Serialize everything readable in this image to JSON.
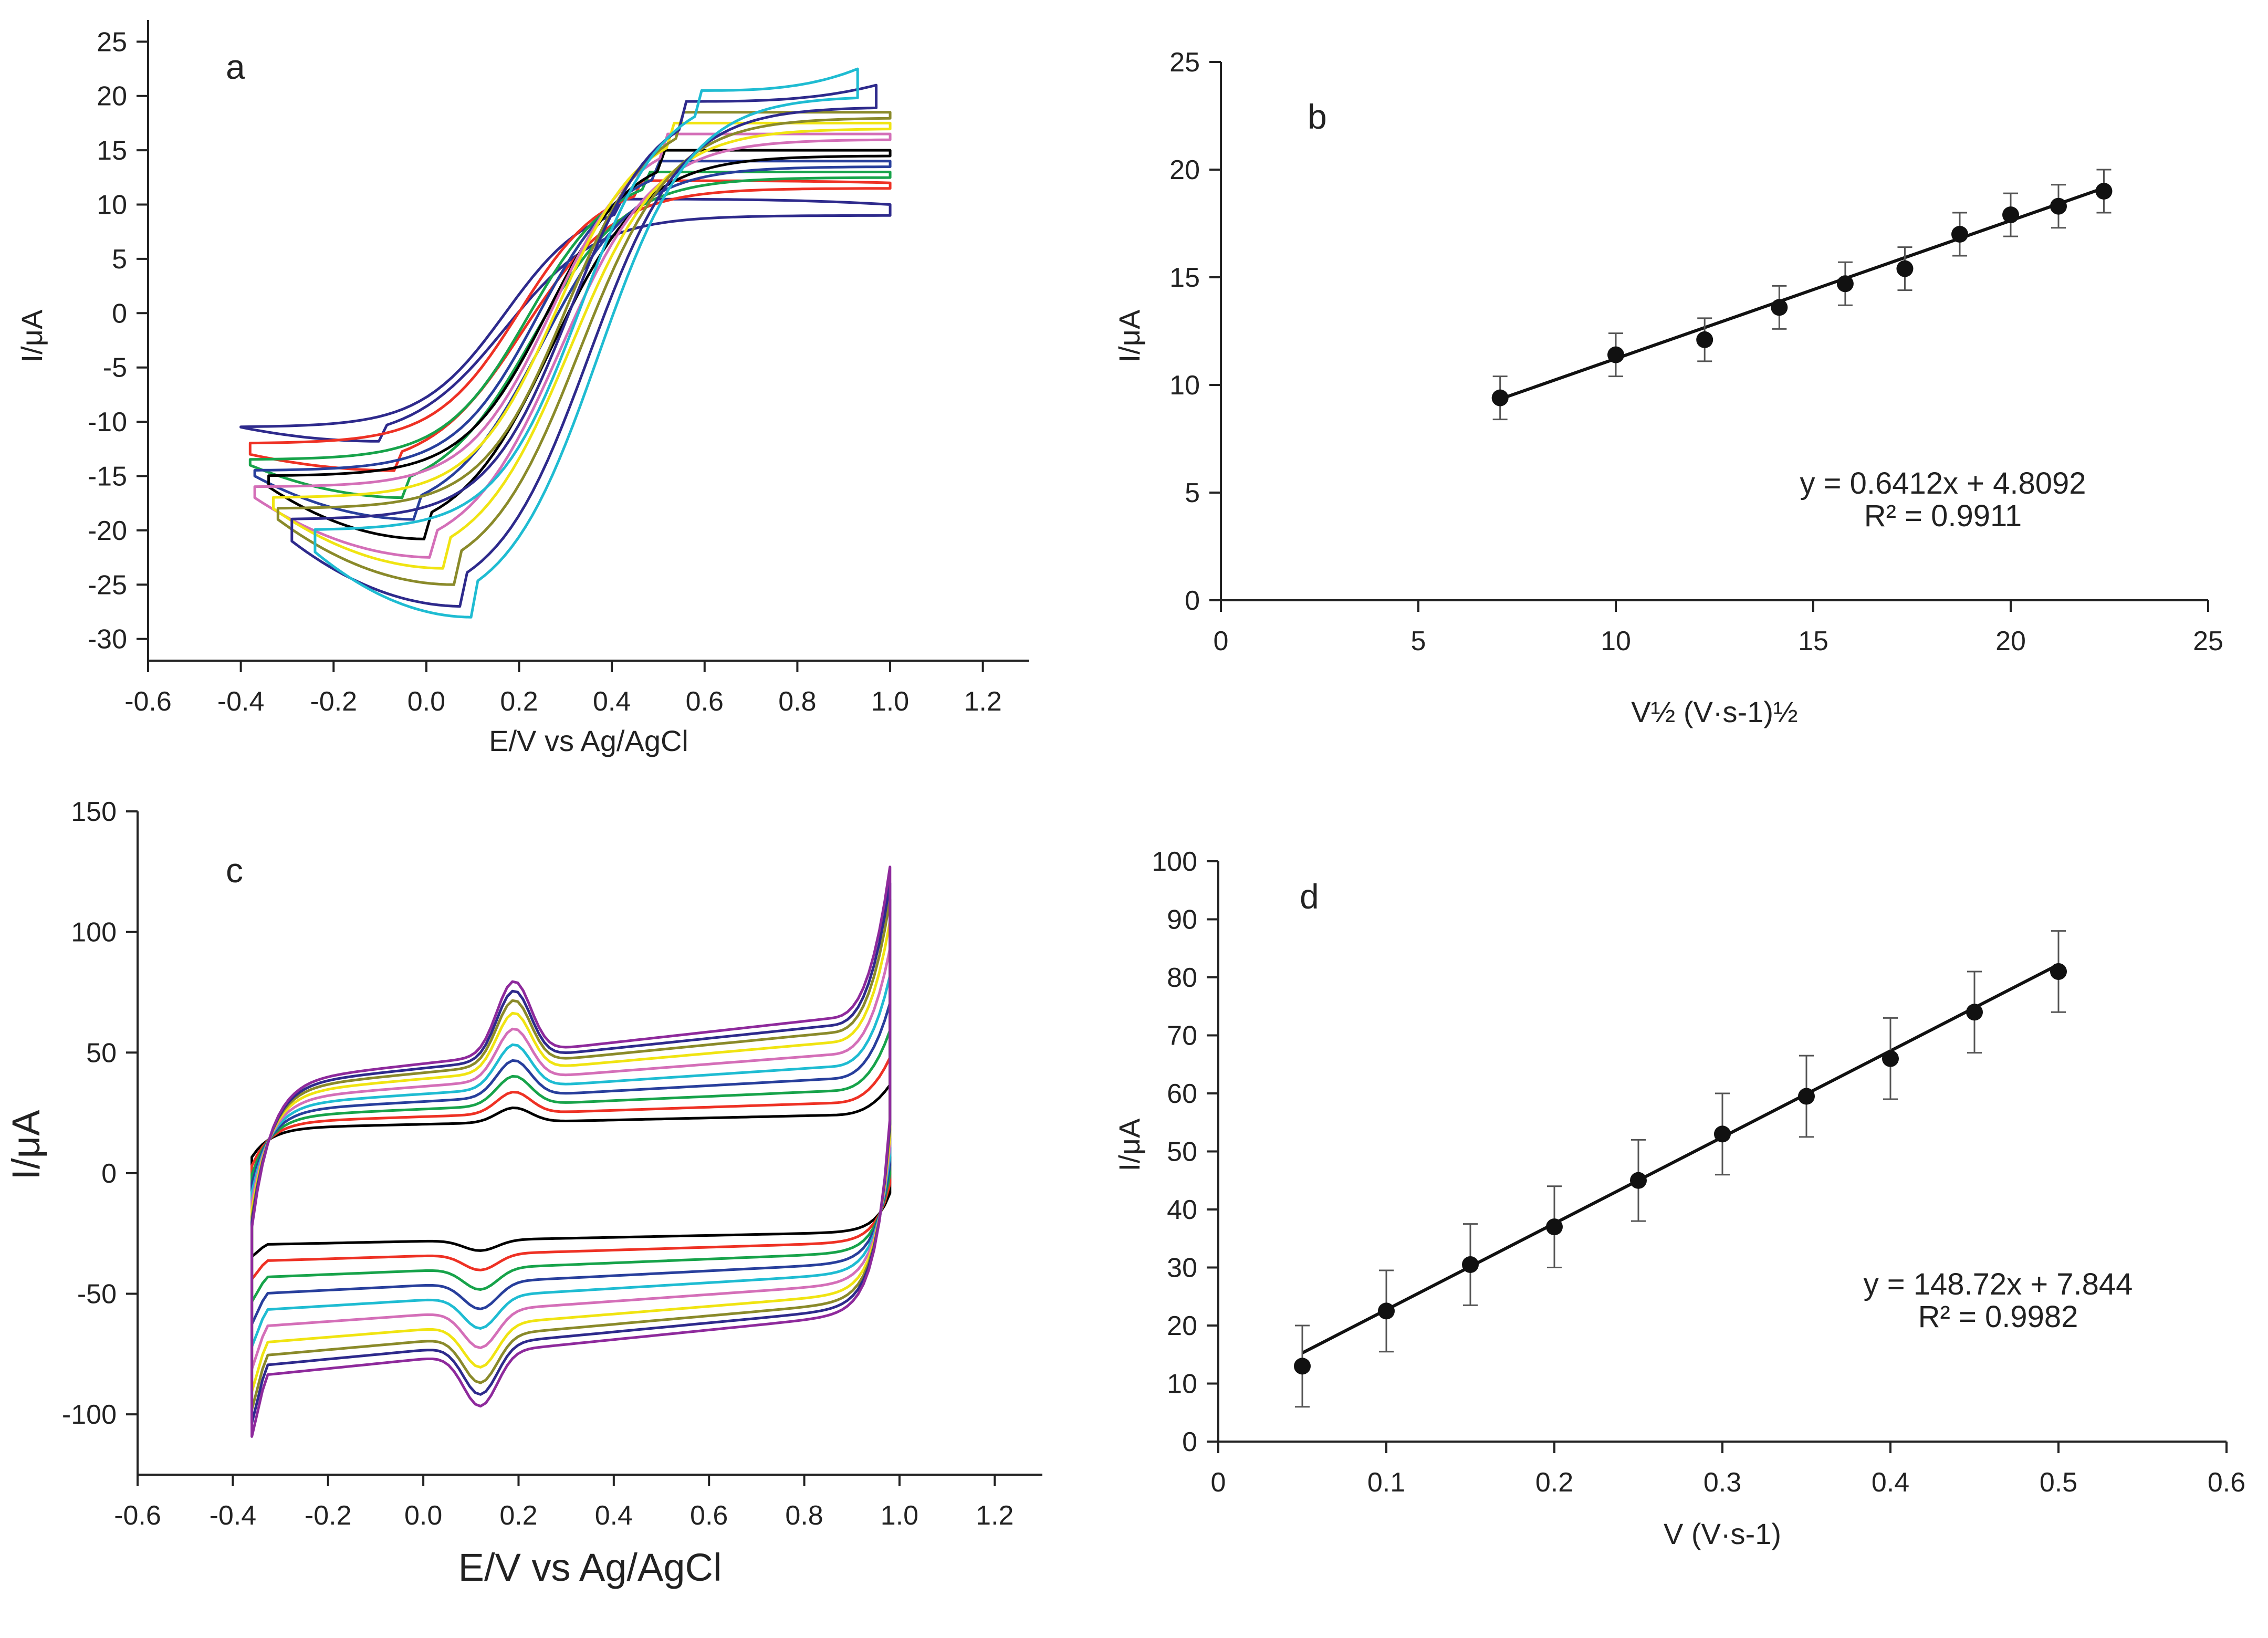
{
  "chart_data": [
    {
      "id": "a",
      "panel_label": "a",
      "type": "line",
      "xlabel": "E/V vs Ag/AgCl",
      "ylabel": "I/μA",
      "xlim": [
        -0.6,
        1.3
      ],
      "ylim": [
        -32,
        27
      ],
      "xticks": [
        "-0.6",
        "-0.4",
        "-0.2",
        "0.0",
        "0.2",
        "0.4",
        "0.6",
        "0.8",
        "1.0",
        "1.2"
      ],
      "yticks": [
        "-30",
        "-25",
        "-20",
        "-15",
        "-10",
        "-5",
        "0",
        "5",
        "10",
        "15",
        "20",
        "25"
      ],
      "grid": false,
      "series": [
        {
          "color": "#2e2a8c",
          "e_start": -0.4,
          "e_end": 1.0,
          "e_pa": 0.42,
          "e_pc": -0.1,
          "i_pa": 10.5,
          "i_pc": -11.8,
          "tail_a": -10.5,
          "tail_b": 10.0,
          "tail_c": 9.0,
          "tail_d": -10.5
        },
        {
          "color": "#ee3124",
          "e_start": -0.38,
          "e_end": 1.0,
          "e_pa": 0.45,
          "e_pc": -0.06,
          "i_pa": 12.2,
          "i_pc": -14.5,
          "tail_a": -12.0,
          "tail_b": 12.0,
          "tail_c": 11.5,
          "tail_d": -13.0
        },
        {
          "color": "#17a34a",
          "e_start": -0.38,
          "e_end": 1.0,
          "e_pa": 0.47,
          "e_pc": -0.04,
          "i_pa": 13.0,
          "i_pc": -17.0,
          "tail_a": -13.5,
          "tail_b": 13.0,
          "tail_c": 12.5,
          "tail_d": -14.0
        },
        {
          "color": "#283f9c",
          "e_start": -0.37,
          "e_end": 1.0,
          "e_pa": 0.49,
          "e_pc": -0.02,
          "i_pa": 14.0,
          "i_pc": -19.0,
          "tail_a": -14.5,
          "tail_b": 14.0,
          "tail_c": 13.5,
          "tail_d": -15.0
        },
        {
          "color": "#000000",
          "e_start": -0.34,
          "e_end": 1.0,
          "e_pa": 0.51,
          "e_pc": 0.0,
          "i_pa": 15.0,
          "i_pc": -20.8,
          "tail_a": -15.0,
          "tail_b": 15.0,
          "tail_c": 14.5,
          "tail_d": -16.0
        },
        {
          "color": "#d46fb8",
          "e_start": -0.37,
          "e_end": 1.0,
          "e_pa": 0.52,
          "e_pc": 0.02,
          "i_pa": 16.5,
          "i_pc": -22.5,
          "tail_a": -16.0,
          "tail_b": 16.5,
          "tail_c": 16.0,
          "tail_d": -17.0
        },
        {
          "color": "#f0e412",
          "e_start": -0.33,
          "e_end": 1.0,
          "e_pa": 0.53,
          "e_pc": 0.04,
          "i_pa": 17.5,
          "i_pc": -23.5,
          "tail_a": -17.0,
          "tail_b": 17.5,
          "tail_c": 17.0,
          "tail_d": -18.0
        },
        {
          "color": "#8a8a2a",
          "e_start": -0.32,
          "e_end": 1.0,
          "e_pa": 0.55,
          "e_pc": 0.06,
          "i_pa": 18.5,
          "i_pc": -25.0,
          "tail_a": -18.0,
          "tail_b": 18.5,
          "tail_c": 18.0,
          "tail_d": -19.0
        },
        {
          "color": "#2e2a8c",
          "e_start": -0.29,
          "e_end": 0.97,
          "e_pa": 0.56,
          "e_pc": 0.08,
          "i_pa": 19.5,
          "i_pc": -27.0,
          "tail_a": -19.0,
          "tail_b": 21.0,
          "tail_c": 19.0,
          "tail_d": -21.0
        },
        {
          "color": "#1fbcd2",
          "e_start": -0.24,
          "e_end": 0.93,
          "e_pa": 0.58,
          "e_pc": 0.1,
          "i_pa": 20.5,
          "i_pc": -28.0,
          "tail_a": -20.0,
          "tail_b": 22.5,
          "tail_c": 20.0,
          "tail_d": -22.0
        }
      ]
    },
    {
      "id": "b",
      "panel_label": "b",
      "type": "scatter",
      "xlabel": "V½ (V·s-1)½",
      "ylabel": "I/μA",
      "xlim": [
        0,
        25
      ],
      "ylim": [
        0,
        25
      ],
      "xticks": [
        "0",
        "5",
        "10",
        "15",
        "20",
        "25"
      ],
      "yticks": [
        "0",
        "5",
        "10",
        "15",
        "20",
        "25"
      ],
      "grid": false,
      "x": [
        7.07,
        10.0,
        12.25,
        14.14,
        15.81,
        17.32,
        18.71,
        20.0,
        21.21,
        22.36
      ],
      "y": [
        9.4,
        11.4,
        12.1,
        13.6,
        14.7,
        15.4,
        17.0,
        17.9,
        18.3,
        19.0
      ],
      "error": [
        1.0,
        1.0,
        1.0,
        1.0,
        1.0,
        1.0,
        1.0,
        1.0,
        1.0,
        1.0
      ],
      "fit": {
        "slope": 0.6412,
        "intercept": 4.8092,
        "equation": "y = 0.6412x + 4.8092",
        "r2": "R² = 0.9911"
      }
    },
    {
      "id": "c",
      "panel_label": "c",
      "type": "line",
      "xlabel": "E/V vs Ag/AgCl",
      "ylabel": "I/μA",
      "xlim": [
        -0.6,
        1.3
      ],
      "ylim": [
        -125,
        150
      ],
      "xticks": [
        "-0.6",
        "-0.4",
        "-0.2",
        "0.0",
        "0.2",
        "0.4",
        "0.6",
        "0.8",
        "1.0",
        "1.2"
      ],
      "yticks": [
        "-100",
        "-50",
        "0",
        "50",
        "100",
        "150"
      ],
      "grid": false,
      "series": [
        {
          "color": "#000000",
          "scale": 0.2
        },
        {
          "color": "#ee3124",
          "scale": 0.3
        },
        {
          "color": "#17a34a",
          "scale": 0.4
        },
        {
          "color": "#283f9c",
          "scale": 0.5
        },
        {
          "color": "#1fbcd2",
          "scale": 0.6
        },
        {
          "color": "#d46fb8",
          "scale": 0.7
        },
        {
          "color": "#f0e412",
          "scale": 0.8
        },
        {
          "color": "#8a8a2a",
          "scale": 0.88
        },
        {
          "color": "#2e2a8c",
          "scale": 0.94
        },
        {
          "color": "#8e2a9c",
          "scale": 1.0
        }
      ]
    },
    {
      "id": "d",
      "panel_label": "d",
      "type": "scatter",
      "xlabel": "V (V·s-1)",
      "ylabel": "I/μA",
      "xlim": [
        0,
        0.6
      ],
      "ylim": [
        0,
        100
      ],
      "xticks": [
        "0",
        "0.1",
        "0.2",
        "0.3",
        "0.4",
        "0.5",
        "0.6"
      ],
      "yticks": [
        "0",
        "10",
        "20",
        "30",
        "40",
        "50",
        "60",
        "70",
        "80",
        "90",
        "100"
      ],
      "grid": false,
      "x": [
        0.05,
        0.1,
        0.15,
        0.2,
        0.25,
        0.3,
        0.35,
        0.4,
        0.45,
        0.5
      ],
      "y": [
        13.0,
        22.5,
        30.5,
        37.0,
        45.0,
        53.0,
        59.5,
        66.0,
        74.0,
        81.0
      ],
      "error": [
        7.0,
        7.0,
        7.0,
        7.0,
        7.0,
        7.0,
        7.0,
        7.0,
        7.0,
        7.0
      ],
      "fit": {
        "slope": 148.72,
        "intercept": 7.844,
        "equation": "y = 148.72x + 7.844",
        "r2": "R² = 0.9982"
      }
    }
  ]
}
